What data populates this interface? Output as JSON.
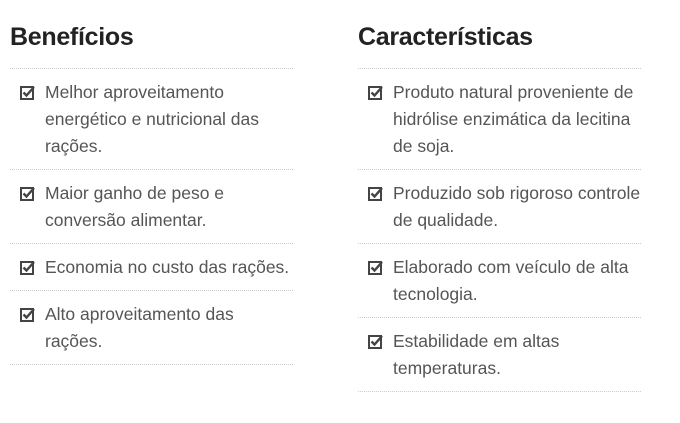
{
  "columns": [
    {
      "title": "Benefícios",
      "items": [
        "Melhor aproveitamento energético e nutricional das rações.",
        "Maior ganho de peso e conversão alimentar.",
        "Economia no custo das rações.",
        "Alto aproveitamento das rações."
      ]
    },
    {
      "title": "Características",
      "items": [
        "Produto natural proveniente de hidrólise enzimática da lecitina de soja.",
        "Produzido sob rigoroso controle de qualidade.",
        "Elaborado com veículo de alta tecnologia.",
        "Estabilidade em altas temperaturas."
      ]
    }
  ],
  "icon": "checkbox-checked-icon"
}
